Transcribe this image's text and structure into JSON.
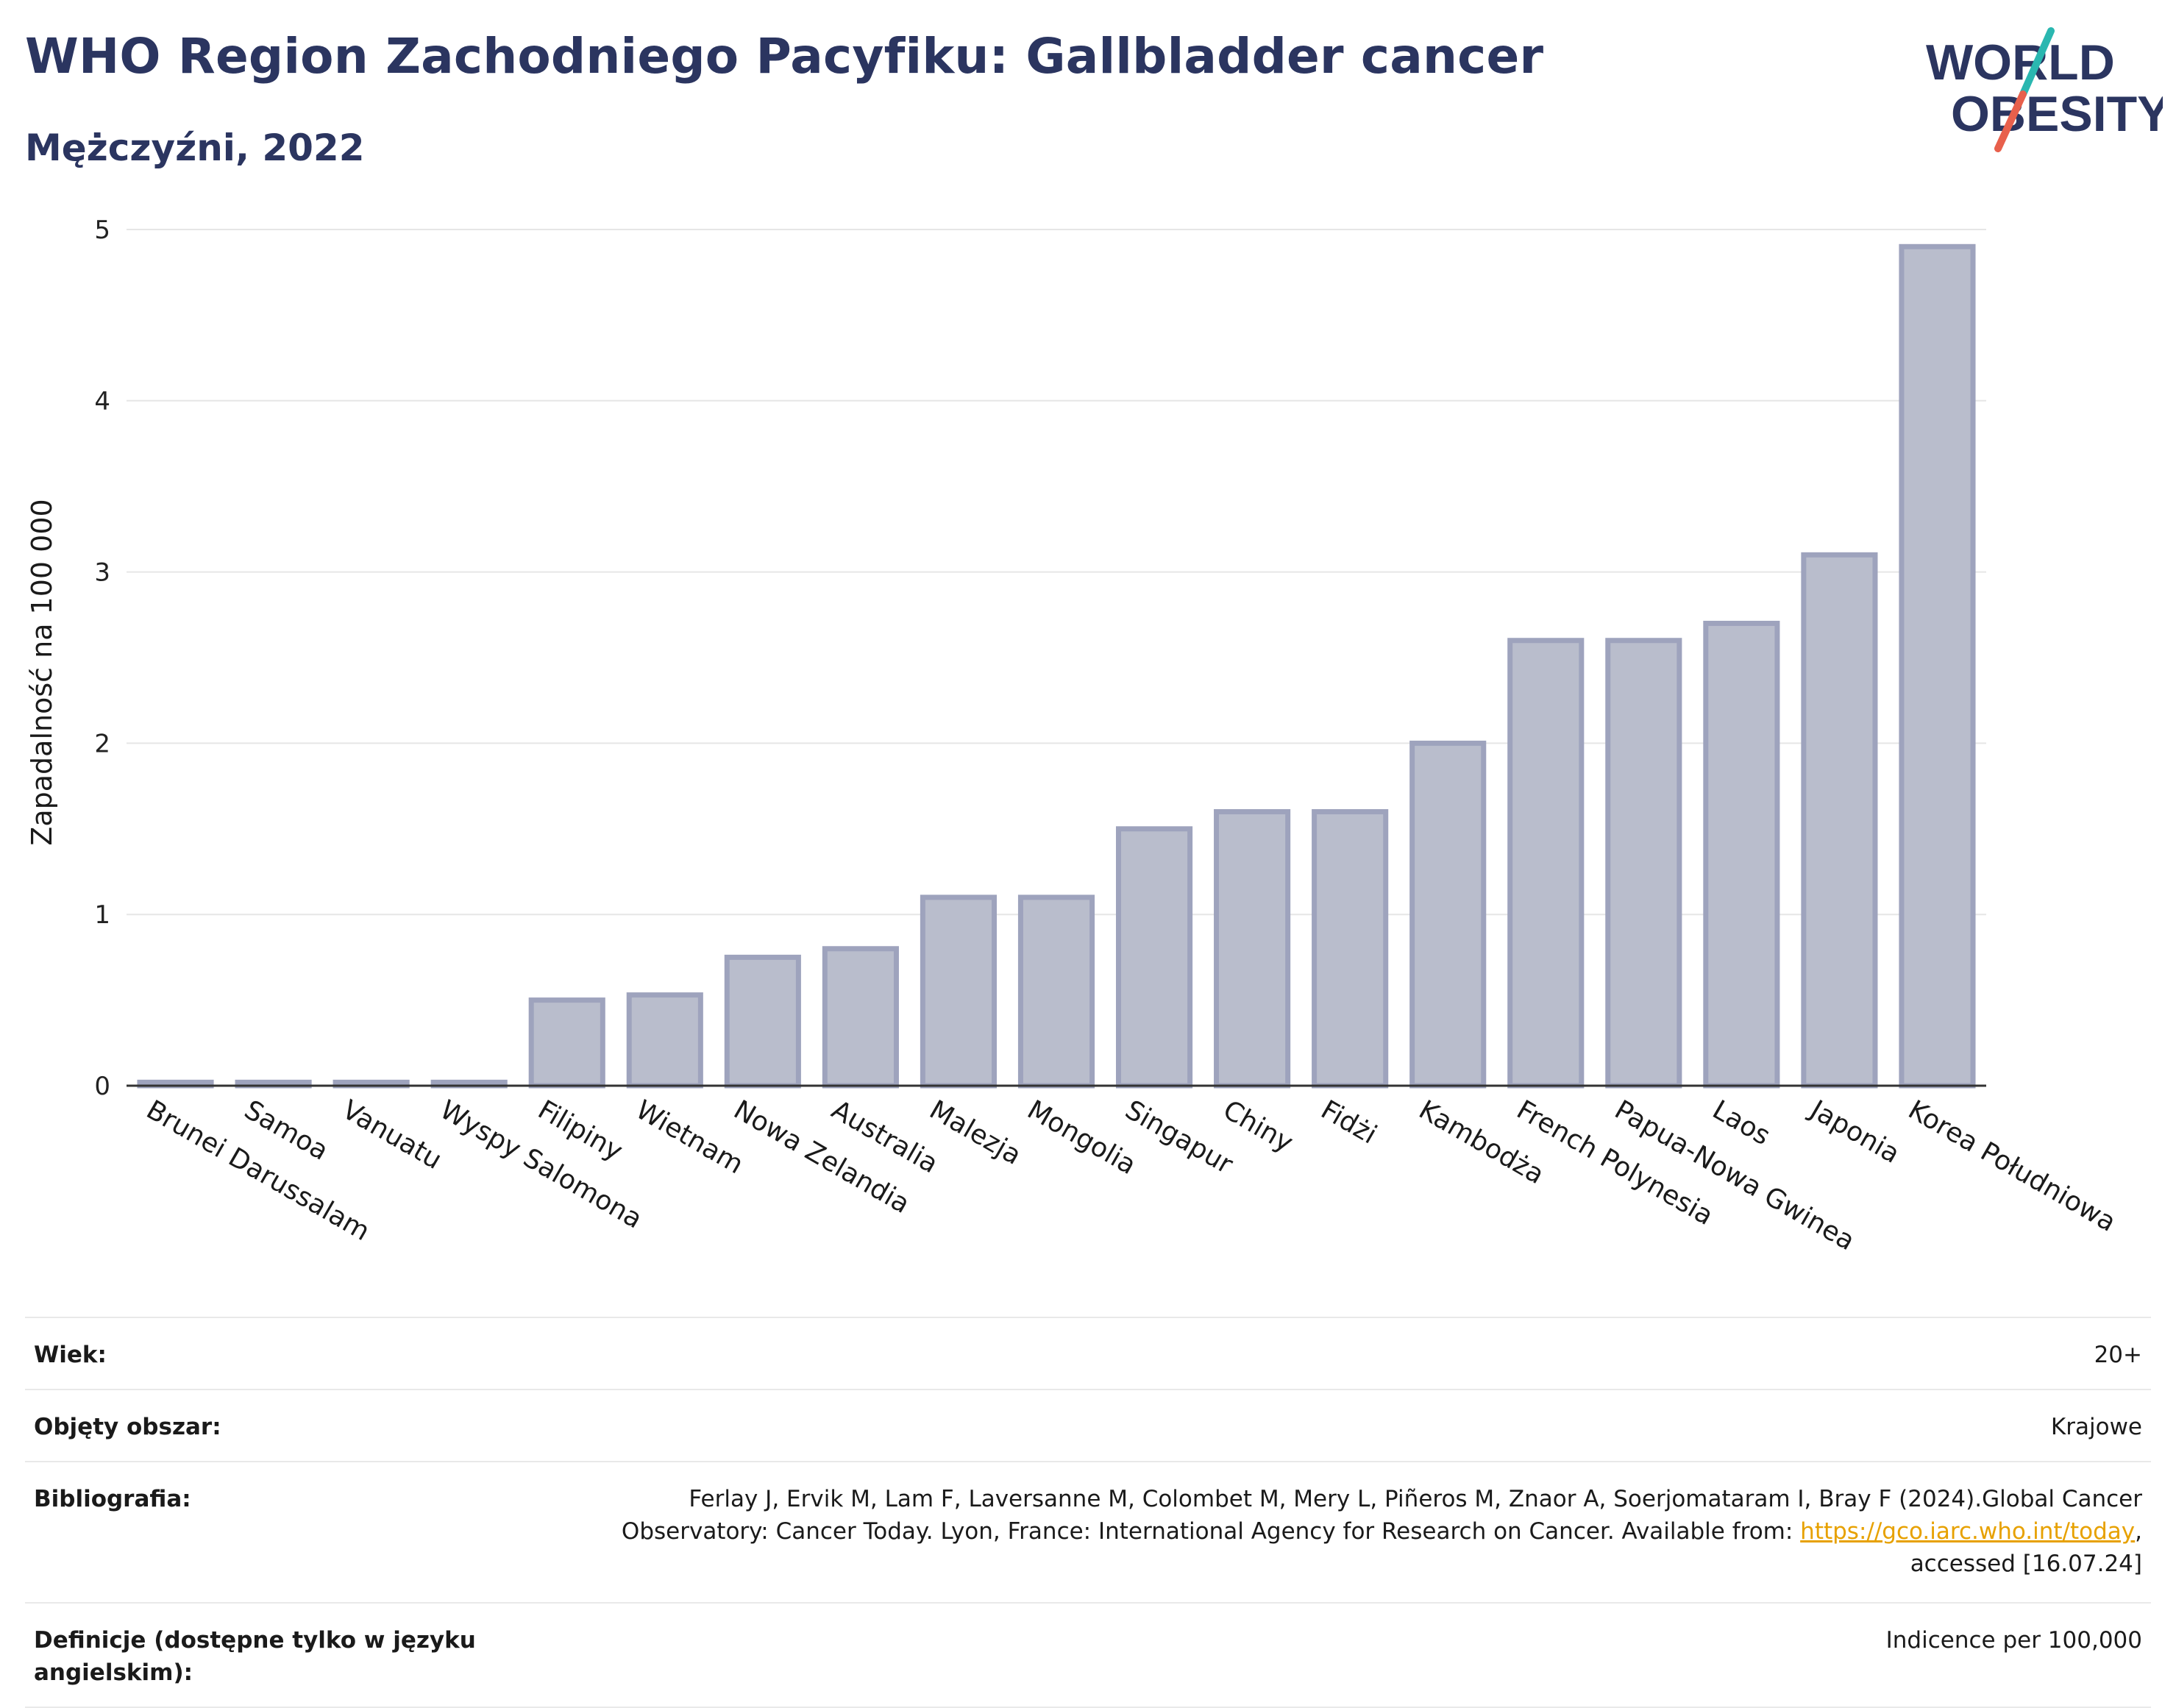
{
  "header": {
    "title": "WHO Region Zachodniego Pacyfiku: Gallbladder cancer",
    "subtitle": "Mężczyźni, 2022"
  },
  "logo": {
    "line1": "WORLD",
    "line2": "OBESITY",
    "colors": {
      "text": "#2b3560",
      "slash_red": "#e8604c",
      "slash_teal": "#2ab7b0"
    }
  },
  "chart_data": {
    "type": "bar",
    "ylabel": "Zapadalność na 100 000",
    "ylim": [
      0,
      5
    ],
    "yticks": [
      0,
      1,
      2,
      3,
      4,
      5
    ],
    "grid": true,
    "categories": [
      "Brunei Darussalam",
      "Samoa",
      "Vanuatu",
      "Wyspy Salomona",
      "Filipiny",
      "Wietnam",
      "Nowa Zelandia",
      "Australia",
      "Malezja",
      "Mongolia",
      "Singapur",
      "Chiny",
      "Fidżi",
      "Kambodża",
      "French Polynesia",
      "Papua-Nowa Gwinea",
      "Laos",
      "Japonia",
      "Korea Południowa"
    ],
    "values": [
      0.02,
      0.02,
      0.02,
      0.02,
      0.5,
      0.53,
      0.75,
      0.8,
      1.1,
      1.1,
      1.5,
      1.6,
      1.6,
      2.0,
      2.6,
      2.6,
      2.7,
      3.1,
      4.9
    ],
    "colors": {
      "bar_fill": "#b9bdcc",
      "bar_stroke": "#9ea3bd"
    }
  },
  "meta": {
    "age_label": "Wiek:",
    "age_value": "20+",
    "coverage_label": "Objęty obszar:",
    "coverage_value": "Krajowe",
    "bibliography_label": "Bibliografia:",
    "bibliography_text1": "Ferlay J, Ervik M, Lam F, Laversanne M, Colombet M, Mery L, Piñeros M, Znaor A, Soerjomataram I, Bray F (2024).Global Cancer Observatory: Cancer Today. Lyon, France: International Agency for Research on Cancer. Available from: ",
    "bibliography_link": "https://gco.iarc.who.int/today",
    "bibliography_text2": ", accessed [16.07.24]",
    "definitions_label": "Definicje (dostępne tylko w języku angielskim):",
    "definitions_value": "Indicence per 100,000"
  }
}
